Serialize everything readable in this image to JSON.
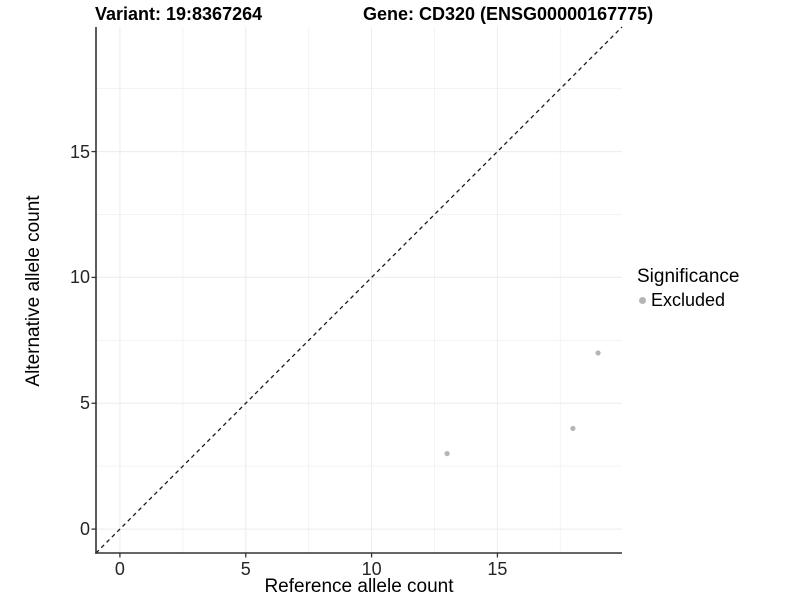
{
  "title": {
    "variant": "Variant: 19:8367264",
    "gene": "Gene: CD320 (ENSG00000167775)"
  },
  "axes": {
    "x_label": "Reference allele count",
    "y_label": "Alternative allele count"
  },
  "legend": {
    "title": "Significance",
    "items": [
      {
        "label": "Excluded",
        "color": "#b5b5b5"
      }
    ],
    "position": "right"
  },
  "chart_data": {
    "type": "scatter",
    "title": "Variant: 19:8367264   Gene: CD320 (ENSG00000167775)",
    "xlabel": "Reference allele count",
    "ylabel": "Alternative allele count",
    "xlim": [
      -0.95,
      19.95
    ],
    "ylim": [
      -0.95,
      19.95
    ],
    "x_ticks": [
      0,
      5,
      10,
      15
    ],
    "y_ticks": [
      0,
      5,
      10,
      15
    ],
    "minor_ticks": [
      2.5,
      7.5,
      12.5,
      17.5
    ],
    "grid": "major+minor",
    "legend_position": "right",
    "series": [
      {
        "name": "Excluded",
        "color": "#b5b5b5",
        "points": [
          [
            13,
            3
          ],
          [
            18,
            4
          ],
          [
            19,
            7
          ]
        ]
      }
    ],
    "reference_line": {
      "kind": "identity y=x",
      "style": "dashed",
      "color": "#1a1a1a"
    }
  },
  "colors": {
    "background": "#ffffff",
    "grid_major": "#ececec",
    "grid_minor": "#f3f3f3",
    "axis_line": "#333333",
    "point": "#b5b5b5",
    "dashed_line": "#1a1a1a"
  }
}
